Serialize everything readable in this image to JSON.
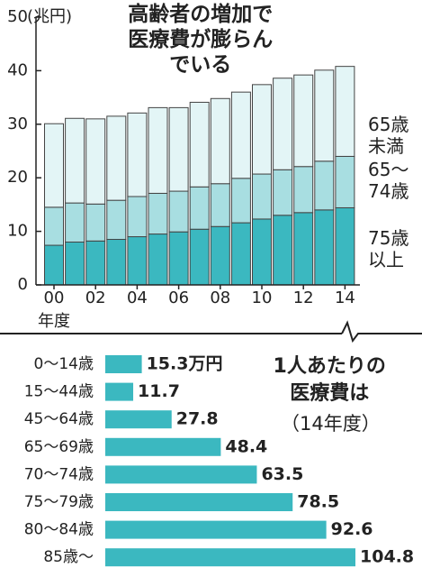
{
  "charts": [
    {
      "type": "stacked_bar",
      "title": "高齢者の増加で医療費が膨らんでいる",
      "y_unit": "(兆円)",
      "x_label": "年度",
      "categories": [
        "00",
        null,
        "02",
        null,
        "04",
        null,
        "06",
        null,
        "08",
        null,
        "10",
        null,
        "12",
        null,
        "14"
      ],
      "series": [
        {
          "name": "75歳以上",
          "color": "#3bb8c0",
          "values": [
            7.4,
            8.0,
            8.2,
            8.5,
            9.0,
            9.5,
            9.9,
            10.4,
            10.9,
            11.6,
            12.3,
            13.0,
            13.5,
            14.0,
            14.4
          ]
        },
        {
          "name": "65〜74歳",
          "color": "#a8dee1",
          "values": [
            7.1,
            7.3,
            6.9,
            7.3,
            7.5,
            7.6,
            7.6,
            7.9,
            8.0,
            8.3,
            8.4,
            8.5,
            8.6,
            9.1,
            9.6
          ]
        },
        {
          "name": "65歳未満",
          "color": "#e3f5f6",
          "values": [
            15.6,
            15.8,
            15.9,
            15.7,
            15.6,
            16.0,
            15.6,
            15.8,
            15.9,
            16.1,
            16.7,
            17.1,
            17.1,
            17.0,
            16.8
          ]
        }
      ],
      "ylim": [
        0,
        50
      ],
      "yticks": [
        0,
        10,
        20,
        30,
        40,
        50
      ]
    },
    {
      "type": "hbar",
      "title": "1人あたりの医療費は",
      "subtitle": "（14年度）",
      "categories": [
        "0〜14歳",
        "15〜44歳",
        "45〜64歳",
        "65〜69歳",
        "70〜74歳",
        "75〜79歳",
        "80〜84歳",
        "85歳〜"
      ],
      "values": [
        15.3,
        11.7,
        27.8,
        48.4,
        63.5,
        78.5,
        92.6,
        104.8
      ],
      "value_labels": [
        "15.3万円",
        "11.7",
        "27.8",
        "48.4",
        "63.5",
        "78.5",
        "92.6",
        "104.8"
      ],
      "color": "#3bb8c0"
    }
  ]
}
